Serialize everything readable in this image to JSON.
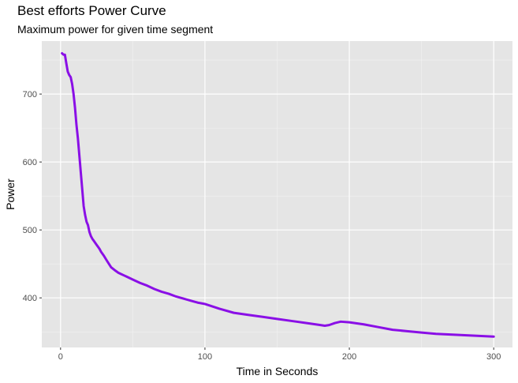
{
  "chart_data": {
    "type": "line",
    "title": "Best efforts Power Curve",
    "subtitle": "Maximum power for given time segment",
    "xlabel": "Time in Seconds",
    "ylabel": "Power",
    "xlim": [
      -13,
      313
    ],
    "ylim": [
      327,
      778
    ],
    "x_ticks": [
      0,
      100,
      200,
      300
    ],
    "y_ticks": [
      400,
      500,
      600,
      700
    ],
    "grid": true,
    "line_color": "#8A0FE6",
    "panel_color": "#E5E5E5",
    "series": [
      {
        "x": [
          1,
          2,
          3,
          4,
          5,
          6,
          7,
          8,
          9,
          10,
          11,
          12,
          13,
          14,
          15,
          16,
          17,
          18,
          19,
          20,
          21,
          22,
          23,
          24,
          25,
          26,
          27,
          28,
          30,
          32,
          35,
          38,
          40,
          42,
          44,
          46,
          48,
          50,
          55,
          60,
          65,
          70,
          75,
          80,
          85,
          90,
          95,
          100,
          110,
          120,
          130,
          140,
          150,
          160,
          170,
          180,
          183,
          186,
          190,
          194,
          200,
          210,
          220,
          230,
          240,
          250,
          260,
          270,
          280,
          290,
          300
        ],
        "y": [
          760,
          758,
          758,
          745,
          733,
          728,
          725,
          715,
          700,
          680,
          655,
          635,
          610,
          585,
          560,
          535,
          522,
          512,
          507,
          497,
          491,
          487,
          484,
          481,
          478,
          475,
          472,
          468,
          462,
          455,
          445,
          440,
          437,
          435,
          433,
          431,
          429,
          427,
          422,
          418,
          413,
          409,
          406,
          402,
          399,
          396,
          393,
          391,
          384,
          378,
          375,
          372,
          369,
          366,
          363,
          360,
          359,
          360,
          363,
          365,
          364,
          361,
          357,
          353,
          351,
          349,
          347,
          346,
          345,
          344,
          343
        ]
      }
    ]
  }
}
